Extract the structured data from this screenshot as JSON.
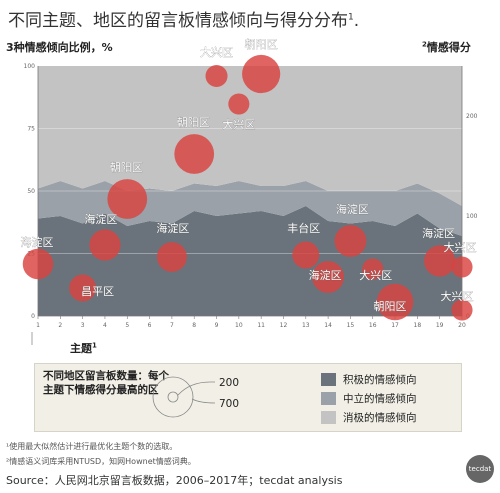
{
  "title": "不同主题、地区的留言板情感倾向与得分分布",
  "title_sup": "1",
  "title_tail": ".",
  "left_axis_title": "3种情感倾向比例，%",
  "right_axis_title_sup": "2",
  "right_axis_title": "情感得分",
  "x_axis_title": "主题",
  "x_axis_title_sup": "1",
  "legend": {
    "count_label": "不同地区留言板数量：每个主题下情感得分最高的区",
    "sizes": [
      "200",
      "700"
    ],
    "items": [
      {
        "label": "积极的情感倾向",
        "color": "#6a737b"
      },
      {
        "label": "中立的情感倾向",
        "color": "#9aa1a8"
      },
      {
        "label": "消极的情感倾向",
        "color": "#c3c3c3"
      }
    ]
  },
  "footnotes": [
    "¹使用最大似然估计进行最优化主题个数的选取。",
    "²情感语义词库采用NTUSD，知网Hownet情感词典。"
  ],
  "source": "Source：人民网北京留言板数据，2006–2017年；tecdat analysis",
  "logo": "tecdat",
  "chart_data": {
    "type": "area",
    "x": [
      1,
      2,
      3,
      4,
      5,
      6,
      7,
      8,
      9,
      10,
      11,
      12,
      13,
      14,
      15,
      16,
      17,
      18,
      19,
      20
    ],
    "ylim_left": [
      0,
      100
    ],
    "yticks_left": [
      0,
      25,
      50,
      75,
      100
    ],
    "ylim_right": [
      0,
      250
    ],
    "yticks_right": [
      0,
      100,
      200
    ],
    "series": [
      {
        "name": "积极的情感倾向",
        "values": [
          39,
          40,
          37,
          41,
          36,
          38,
          37,
          42,
          40,
          41,
          42,
          40,
          44,
          38,
          37,
          38,
          36,
          41,
          35,
          32
        ]
      },
      {
        "name": "中立的情感倾向",
        "values": [
          12,
          14,
          14,
          13,
          14,
          13,
          13,
          11,
          12,
          13,
          10,
          12,
          10,
          12,
          13,
          12,
          14,
          12,
          14,
          12
        ]
      },
      {
        "name": "消极的情感倾向",
        "values": [
          49,
          46,
          49,
          46,
          50,
          49,
          50,
          47,
          48,
          46,
          48,
          48,
          46,
          50,
          50,
          50,
          50,
          47,
          51,
          56
        ]
      }
    ],
    "bubbles": [
      {
        "x": 1,
        "score": 52,
        "size": 230,
        "label": "海淀区"
      },
      {
        "x": 3,
        "score": 28,
        "size": 180,
        "label": "昌平区"
      },
      {
        "x": 4,
        "score": 71,
        "size": 240,
        "label": "海淀区"
      },
      {
        "x": 5,
        "score": 117,
        "size": 390,
        "label": "朝阳区"
      },
      {
        "x": 7,
        "score": 59,
        "size": 220,
        "label": "海淀区"
      },
      {
        "x": 8,
        "score": 162,
        "size": 390,
        "label": "朝阳区"
      },
      {
        "x": 9,
        "score": 240,
        "size": 120,
        "label": "大兴区"
      },
      {
        "x": 10,
        "score": 212,
        "size": 110,
        "label": "大兴区"
      },
      {
        "x": 11,
        "score": 242,
        "size": 360,
        "label": "朝阳区"
      },
      {
        "x": 13,
        "score": 61,
        "size": 180,
        "label": "丰台区"
      },
      {
        "x": 14,
        "score": 39,
        "size": 250,
        "label": "海淀区"
      },
      {
        "x": 15,
        "score": 75,
        "size": 250,
        "label": "海淀区"
      },
      {
        "x": 16,
        "score": 47,
        "size": 110,
        "label": "大兴区"
      },
      {
        "x": 17,
        "score": 14,
        "size": 330,
        "label": "朝阳区"
      },
      {
        "x": 19,
        "score": 55,
        "size": 240,
        "label": "海淀区"
      },
      {
        "x": 20,
        "score": 6,
        "size": 110,
        "label": "大兴区"
      },
      {
        "x": 20,
        "score": 49,
        "size": 110,
        "label": "大兴区"
      }
    ]
  }
}
